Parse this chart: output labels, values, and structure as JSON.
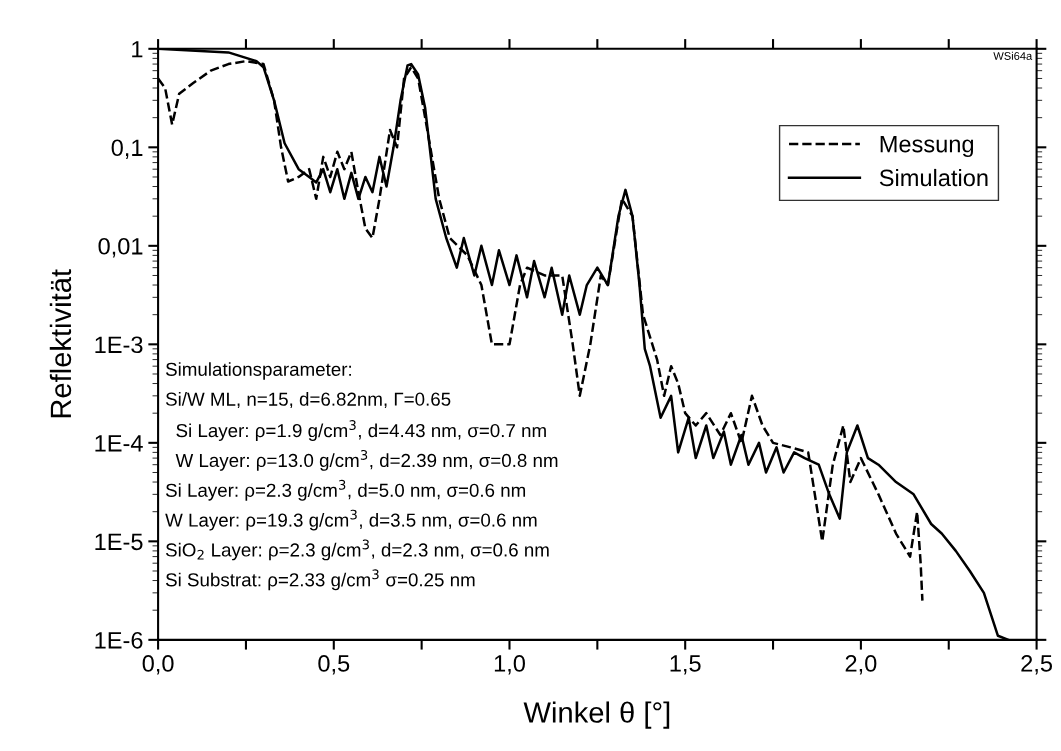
{
  "chart_data": {
    "type": "line",
    "xlabel": "Winkel θ [°]",
    "ylabel": "Reflektivität",
    "log": "y",
    "grid": false,
    "legend": "top right",
    "marker": "none",
    "xlim": [
      0,
      2.5
    ],
    "ylim": [
      1e-06,
      1
    ],
    "xticks": [
      {
        "value": 0,
        "label": "0,0"
      },
      {
        "value": 0.25,
        "label": null
      },
      {
        "value": 0.5,
        "label": "0,5"
      },
      {
        "value": 0.75,
        "label": null
      },
      {
        "value": 1.0,
        "label": "1,0"
      },
      {
        "value": 1.25,
        "label": null
      },
      {
        "value": 1.5,
        "label": "1,5"
      },
      {
        "value": 1.75,
        "label": null
      },
      {
        "value": 2.0,
        "label": "2,0"
      },
      {
        "value": 2.25,
        "label": null
      },
      {
        "value": 2.5,
        "label": "2,5"
      }
    ],
    "yticks": [
      {
        "value": 1e-06,
        "label": "1E-6"
      },
      {
        "value": 1e-05,
        "label": "1E-5"
      },
      {
        "value": 0.0001,
        "label": "1E-4"
      },
      {
        "value": 0.001,
        "label": "1E-3"
      },
      {
        "value": 0.01,
        "label": "0,01"
      },
      {
        "value": 0.1,
        "label": "0,1"
      },
      {
        "value": 1,
        "label": "1"
      }
    ],
    "series": [
      {
        "name": "Messung",
        "color": "#000000",
        "line_style": "dashed",
        "x": [
          0,
          0.02,
          0.04,
          0.06,
          0.1,
          0.15,
          0.2,
          0.25,
          0.3,
          0.33,
          0.35,
          0.37,
          0.4,
          0.43,
          0.45,
          0.47,
          0.49,
          0.51,
          0.53,
          0.55,
          0.57,
          0.59,
          0.61,
          0.63,
          0.66,
          0.68,
          0.7,
          0.72,
          0.74,
          0.76,
          0.8,
          0.83,
          0.88,
          0.92,
          0.95,
          1.0,
          1.03,
          1.05,
          1.1,
          1.15,
          1.18,
          1.2,
          1.23,
          1.26,
          1.28,
          1.32,
          1.35,
          1.38,
          1.42,
          1.44,
          1.46,
          1.48,
          1.5,
          1.53,
          1.56,
          1.6,
          1.63,
          1.66,
          1.69,
          1.72,
          1.75,
          1.8,
          1.85,
          1.89,
          1.92,
          1.95,
          1.97,
          2.0,
          2.05,
          2.1,
          2.14,
          2.16,
          2.17,
          2.175
        ],
        "values": [
          0.5,
          0.4,
          0.17,
          0.35,
          0.45,
          0.6,
          0.7,
          0.75,
          0.7,
          0.3,
          0.1,
          0.045,
          0.05,
          0.06,
          0.03,
          0.08,
          0.05,
          0.09,
          0.06,
          0.09,
          0.035,
          0.015,
          0.012,
          0.03,
          0.15,
          0.1,
          0.5,
          0.65,
          0.5,
          0.2,
          0.03,
          0.012,
          0.008,
          0.004,
          0.001,
          0.001,
          0.004,
          0.006,
          0.005,
          0.005,
          0.001,
          0.0003,
          0.001,
          0.005,
          0.004,
          0.03,
          0.02,
          0.002,
          0.0007,
          0.0003,
          0.0006,
          0.0004,
          0.0002,
          0.00015,
          0.0002,
          0.00012,
          0.0002,
          0.0001,
          0.0003,
          0.00015,
          0.0001,
          9e-05,
          8e-05,
          1e-05,
          6e-05,
          0.00015,
          4e-05,
          7e-05,
          3e-05,
          1.2e-05,
          7e-06,
          2e-05,
          6e-06,
          2.5e-06
        ]
      },
      {
        "name": "Simulation",
        "color": "#000000",
        "line_style": "solid",
        "x": [
          0,
          0.2,
          0.28,
          0.3,
          0.33,
          0.36,
          0.4,
          0.43,
          0.45,
          0.47,
          0.49,
          0.51,
          0.53,
          0.55,
          0.57,
          0.59,
          0.61,
          0.63,
          0.65,
          0.67,
          0.69,
          0.71,
          0.72,
          0.74,
          0.76,
          0.79,
          0.82,
          0.85,
          0.87,
          0.9,
          0.92,
          0.95,
          0.97,
          1.0,
          1.02,
          1.05,
          1.07,
          1.1,
          1.12,
          1.15,
          1.17,
          1.2,
          1.22,
          1.25,
          1.28,
          1.31,
          1.33,
          1.35,
          1.37,
          1.385,
          1.4,
          1.43,
          1.46,
          1.48,
          1.51,
          1.53,
          1.56,
          1.58,
          1.61,
          1.63,
          1.66,
          1.68,
          1.71,
          1.73,
          1.76,
          1.78,
          1.81,
          1.84,
          1.88,
          1.91,
          1.94,
          1.96,
          1.99,
          2.02,
          2.05,
          2.1,
          2.15,
          2.2,
          2.23,
          2.27,
          2.31,
          2.35,
          2.39,
          2.42
        ],
        "values": [
          1.0,
          0.92,
          0.75,
          0.65,
          0.3,
          0.11,
          0.06,
          0.05,
          0.044,
          0.06,
          0.035,
          0.06,
          0.03,
          0.055,
          0.03,
          0.05,
          0.035,
          0.08,
          0.04,
          0.1,
          0.3,
          0.68,
          0.7,
          0.55,
          0.25,
          0.03,
          0.012,
          0.006,
          0.012,
          0.005,
          0.01,
          0.004,
          0.009,
          0.004,
          0.008,
          0.003,
          0.007,
          0.003,
          0.006,
          0.002,
          0.005,
          0.002,
          0.004,
          0.006,
          0.004,
          0.02,
          0.037,
          0.02,
          0.004,
          0.0009,
          0.0006,
          0.00018,
          0.0003,
          8e-05,
          0.00018,
          7e-05,
          0.00015,
          7e-05,
          0.00013,
          6e-05,
          0.00012,
          6e-05,
          0.0001,
          5e-05,
          9e-05,
          5e-05,
          8e-05,
          7e-05,
          6e-05,
          3e-05,
          1.7e-05,
          8e-05,
          0.00015,
          7e-05,
          6e-05,
          4e-05,
          3e-05,
          1.5e-05,
          1.2e-05,
          8e-06,
          5e-06,
          3e-06,
          1.1e-06,
          1e-06
        ]
      }
    ],
    "annotations": [
      "WSi64a",
      "Simulationsparameter:",
      "Si/W ML, n=15, d=6.82nm, Γ=0.65",
      "  Si Layer: ρ=1.9 g/cm$^{3}$, d=4.43 nm, σ=0.7 nm",
      "  W Layer: ρ=13.0 g/cm$^{3}$, d=2.39 nm, σ=0.8 nm",
      "Si Layer: ρ=2.3 g/cm$^{3}$, d=5.0 nm, σ=0.6 nm",
      "W Layer: ρ=19.3 g/cm$^{3}$, d=3.5 nm, σ=0.6 nm",
      "SiO$_{2}$ Layer: ρ=2.3 g/cm$^{3}$, d=2.3 nm, σ=0.6 nm",
      "Si Substrat: ρ=2.33 g/cm$^{3}$ σ=0.25 nm"
    ]
  }
}
